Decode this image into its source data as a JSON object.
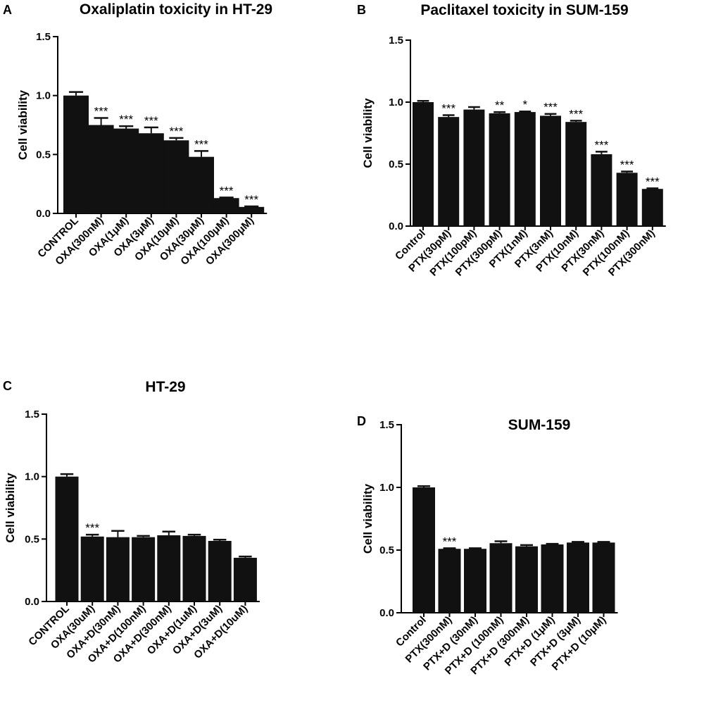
{
  "chart_data": [
    {
      "type": "bar",
      "panel_label": "A",
      "title": "Oxaliplatin toxicity in HT-29",
      "ylabel": "Cell viability",
      "xlabel": "",
      "ylim": [
        0,
        1.5
      ],
      "yticks": [
        "0.0",
        "0.5",
        "1.0",
        "1.5"
      ],
      "categories": [
        "CONTROL",
        "OXA(300nM)",
        "OXA(1μM)",
        "OXA(3μM)",
        "OXA(10μM)",
        "OXA(30μM)",
        "OXA(100μM)",
        "OXA(300μM)"
      ],
      "values": [
        1.0,
        0.75,
        0.72,
        0.68,
        0.62,
        0.48,
        0.13,
        0.055
      ],
      "errors": [
        0.03,
        0.06,
        0.02,
        0.05,
        0.02,
        0.05,
        0.005,
        0.005
      ],
      "significance": [
        "",
        "***",
        "***",
        "***",
        "***",
        "***",
        "***",
        "***"
      ]
    },
    {
      "type": "bar",
      "panel_label": "B",
      "title": "Paclitaxel toxicity in SUM-159",
      "ylabel": "Cell viability",
      "xlabel": "",
      "ylim": [
        0,
        1.5
      ],
      "yticks": [
        "0.0",
        "0.5",
        "1.0",
        "1.5"
      ],
      "categories": [
        "Control",
        "PTX(30pM)",
        "PTX(100pM)",
        "PTX(300pM)",
        "PTX(1nM)",
        "PTX(3nM)",
        "PTX(10nM)",
        "PTX(30nM)",
        "PTX(100nM)",
        "PTX(300nM)"
      ],
      "values": [
        1.0,
        0.88,
        0.94,
        0.91,
        0.92,
        0.89,
        0.84,
        0.58,
        0.43,
        0.3
      ],
      "errors": [
        0.01,
        0.015,
        0.02,
        0.01,
        0.005,
        0.015,
        0.01,
        0.02,
        0.01,
        0.005
      ],
      "significance": [
        "",
        "***",
        "",
        "**",
        "*",
        "***",
        "***",
        "***",
        "***",
        "***"
      ]
    },
    {
      "type": "bar",
      "panel_label": "C",
      "title": "HT-29",
      "ylabel": "Cell viability",
      "xlabel": "",
      "ylim": [
        0,
        1.5
      ],
      "yticks": [
        "0.0",
        "0.5",
        "1.0",
        "1.5"
      ],
      "categories": [
        "CONTROL",
        "OXA(30uM)",
        "OXA+D(30nM)",
        "OXA+D(100nM)",
        "OXA+D(300nM)",
        "OXA+D(1uM)",
        "OXA+D(3uM)",
        "OXA+D(10uM)"
      ],
      "values": [
        1.0,
        0.52,
        0.515,
        0.515,
        0.53,
        0.525,
        0.485,
        0.35
      ],
      "errors": [
        0.02,
        0.015,
        0.05,
        0.01,
        0.03,
        0.01,
        0.01,
        0.01
      ],
      "significance": [
        "",
        "***",
        "",
        "",
        "",
        "",
        "",
        ""
      ]
    },
    {
      "type": "bar",
      "panel_label": "D",
      "title": "SUM-159",
      "ylabel": "Cell viability",
      "xlabel": "",
      "ylim": [
        0,
        1.5
      ],
      "yticks": [
        "0.0",
        "0.5",
        "1.0",
        "1.5"
      ],
      "categories": [
        "Control",
        "PTX(300nM)",
        "PTX+D (30nM)",
        "PTX+D (100nM)",
        "PTX+D (300nM)",
        "PTX+D (1μM)",
        "PTX+D (3μM)",
        "PTX+D (10μM)"
      ],
      "values": [
        1.0,
        0.51,
        0.51,
        0.555,
        0.53,
        0.545,
        0.56,
        0.56
      ],
      "errors": [
        0.01,
        0.005,
        0.005,
        0.015,
        0.01,
        0.005,
        0.005,
        0.005
      ],
      "significance": [
        "",
        "***",
        "",
        "",
        "",
        "",
        "",
        ""
      ]
    }
  ]
}
